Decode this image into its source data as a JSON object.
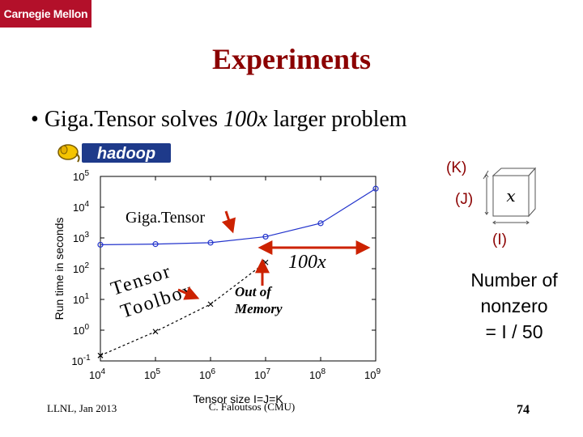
{
  "header": {
    "logo_text": "Carnegie Mellon",
    "title": "Experiments"
  },
  "bullet": {
    "pre": "Giga.Tensor solves ",
    "em": "100x",
    "post": " larger problem"
  },
  "hadoop_logo_text": "hadoop",
  "annotations": {
    "gigatensor": "Giga.Tensor",
    "tensor_toolbox_line1": "Tensor",
    "tensor_toolbox_line2": "Toolbox",
    "hundred_x": "100x",
    "out_of_memory_line1": "Out of",
    "out_of_memory_line2": "Memory"
  },
  "cube": {
    "k_label": "(K)",
    "j_label": "(J)",
    "i_label": "(I)",
    "x_label": "x"
  },
  "nonzero": {
    "line1": "Number of",
    "line2": "nonzero",
    "line3": "= I / 50"
  },
  "footer": {
    "left": "LLNL, Jan 2013",
    "center": "C. Faloutsos (CMU)",
    "page": "74"
  },
  "colors": {
    "title": "#8b0000",
    "logo_bg": "#b3102a",
    "gigatensor_series": "#2233cc",
    "toolbox_series": "#000000",
    "annotation_arrows": "#cc2200"
  },
  "chart_data": {
    "type": "line",
    "xlabel": "Tensor size I=J=K",
    "ylabel": "Run time in seconds",
    "x_scale": "log",
    "y_scale": "log",
    "xlim": [
      10000,
      1000000000
    ],
    "ylim": [
      0.1,
      100000
    ],
    "x_ticks": [
      {
        "value": 10000,
        "base": "10",
        "exp": "4"
      },
      {
        "value": 100000,
        "base": "10",
        "exp": "5"
      },
      {
        "value": 1000000,
        "base": "10",
        "exp": "6"
      },
      {
        "value": 10000000,
        "base": "10",
        "exp": "7"
      },
      {
        "value": 100000000,
        "base": "10",
        "exp": "8"
      },
      {
        "value": 1000000000,
        "base": "10",
        "exp": "9"
      }
    ],
    "y_ticks": [
      {
        "value": 0.1,
        "base": "10",
        "exp": "-1"
      },
      {
        "value": 1,
        "base": "10",
        "exp": "0"
      },
      {
        "value": 10,
        "base": "10",
        "exp": "1"
      },
      {
        "value": 100,
        "base": "10",
        "exp": "2"
      },
      {
        "value": 1000,
        "base": "10",
        "exp": "3"
      },
      {
        "value": 10000,
        "base": "10",
        "exp": "4"
      },
      {
        "value": 100000,
        "base": "10",
        "exp": "5"
      }
    ],
    "grid": false,
    "series": [
      {
        "key": "gigatensor",
        "marker": "circle",
        "line": "solid",
        "x": [
          10000,
          100000,
          1000000,
          10000000,
          100000000,
          1000000000
        ],
        "y": [
          600,
          630,
          700,
          1100,
          3000,
          40000
        ]
      },
      {
        "key": "toolbox",
        "marker": "x",
        "line": "dashed",
        "x": [
          10000,
          100000,
          1000000,
          10000000
        ],
        "y": [
          0.15,
          0.9,
          7,
          160
        ]
      }
    ]
  }
}
